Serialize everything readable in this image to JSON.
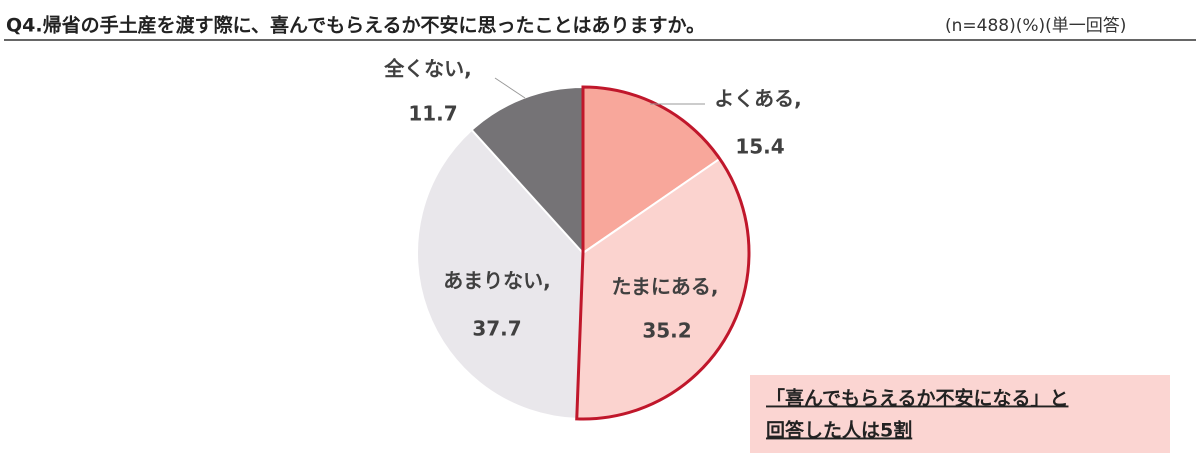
{
  "chart_data": {
    "type": "pie",
    "title": "Q4.帰省の手土産を渡す際に、喜んでもらえるか不安に思ったことはありますか。",
    "subtitle": "(n=488)(%)(単一回答)",
    "categories": [
      "よくある,",
      "たまにある,",
      "あまりない,",
      "全くない,"
    ],
    "values": [
      15.4,
      35.2,
      37.7,
      11.7
    ],
    "colors": [
      "#f8a79b",
      "#fbd3cf",
      "#e9e7eb",
      "#757376"
    ],
    "annotation": [
      "「喜んでもらえるか不安になる」と",
      "回答した人は5割"
    ]
  }
}
